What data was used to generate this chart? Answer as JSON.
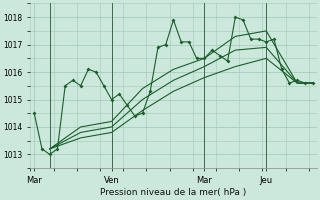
{
  "background_color": "#cce8dc",
  "grid_color": "#a0c8b4",
  "line_color": "#1a5e2a",
  "title": "Pression niveau de la mer( hPa )",
  "ylim": [
    1012.5,
    1018.5
  ],
  "yticks": [
    1013,
    1014,
    1015,
    1016,
    1017,
    1018
  ],
  "day_labels": [
    "Mar",
    "Ven",
    "Mar",
    "Jeu"
  ],
  "day_positions": [
    0,
    10,
    22,
    30
  ],
  "vline_positions": [
    2,
    10,
    22,
    30
  ],
  "n_points": 37,
  "series1_x": [
    0,
    1,
    2,
    3,
    4,
    5,
    6,
    7,
    8,
    9,
    10,
    11,
    12,
    13,
    14,
    15,
    16,
    17,
    18,
    19,
    20,
    21,
    22,
    23,
    24,
    25,
    26,
    27,
    28,
    29,
    30,
    31,
    32,
    33,
    34,
    35,
    36
  ],
  "series1_y": [
    1014.5,
    1013.2,
    1013.0,
    1013.2,
    1015.5,
    1015.7,
    1015.5,
    1016.1,
    1016.0,
    1015.5,
    1015.0,
    1015.2,
    1014.8,
    1014.4,
    1014.5,
    1015.3,
    1016.9,
    1017.0,
    1017.9,
    1017.1,
    1017.1,
    1016.5,
    1016.5,
    1016.8,
    1016.6,
    1016.4,
    1018.0,
    1017.9,
    1017.2,
    1017.2,
    1017.1,
    1017.2,
    1016.1,
    1015.6,
    1015.7,
    1015.6,
    1015.6
  ],
  "series2_x": [
    2,
    6,
    10,
    14,
    18,
    22,
    26,
    30,
    34,
    36
  ],
  "series2_y": [
    1013.2,
    1013.6,
    1013.8,
    1014.6,
    1015.3,
    1015.8,
    1016.2,
    1016.5,
    1015.6,
    1015.6
  ],
  "series3_x": [
    2,
    6,
    10,
    14,
    18,
    22,
    26,
    30,
    34,
    36
  ],
  "series3_y": [
    1013.2,
    1013.8,
    1014.0,
    1015.0,
    1015.7,
    1016.2,
    1016.8,
    1016.9,
    1015.6,
    1015.6
  ],
  "series4_x": [
    2,
    6,
    10,
    14,
    18,
    22,
    26,
    30,
    34,
    36
  ],
  "series4_y": [
    1013.2,
    1014.0,
    1014.2,
    1015.4,
    1016.1,
    1016.5,
    1017.3,
    1017.5,
    1015.6,
    1015.6
  ]
}
